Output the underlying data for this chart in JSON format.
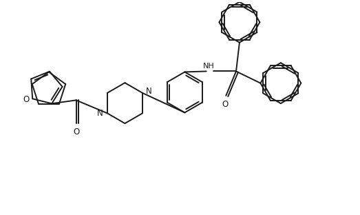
{
  "background": "#ffffff",
  "line_color": "#1a1a1a",
  "bond_width": 1.4,
  "figsize": [
    5.23,
    3.12
  ],
  "dpi": 100,
  "xlim": [
    0,
    10.46
  ],
  "ylim": [
    0,
    6.24
  ]
}
